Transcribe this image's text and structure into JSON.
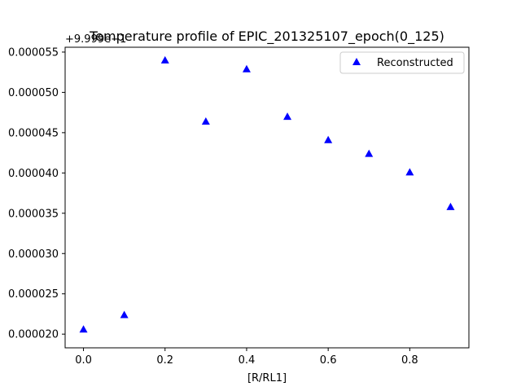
{
  "chart_data": {
    "type": "scatter",
    "title": "Temperature profile of EPIC_201325107_epoch(0_125)",
    "xlabel": "[R/RL1]",
    "ylabel": "",
    "offset_label": "+9.999e−1",
    "xlim": [
      -0.045,
      0.945
    ],
    "ylim": [
      1.83e-05,
      5.56e-05
    ],
    "x_ticks": [
      0.0,
      0.2,
      0.4,
      0.6,
      0.8
    ],
    "x_tick_labels": [
      "0.0",
      "0.2",
      "0.4",
      "0.6",
      "0.8"
    ],
    "y_ticks": [
      2e-05,
      2.5e-05,
      3e-05,
      3.5e-05,
      4e-05,
      4.5e-05,
      5e-05,
      5.5e-05
    ],
    "y_tick_labels": [
      "0.000020",
      "0.000025",
      "0.000030",
      "0.000035",
      "0.000040",
      "0.000045",
      "0.000050",
      "0.000055"
    ],
    "legend_position": "top-right",
    "series": [
      {
        "name": "Reconstructed",
        "marker": "triangle",
        "color": "#0000ff",
        "x": [
          0.0,
          0.1,
          0.2,
          0.3,
          0.4,
          0.5,
          0.6,
          0.7,
          0.8,
          0.9
        ],
        "y": [
          2.06e-05,
          2.24e-05,
          5.4e-05,
          4.64e-05,
          5.29e-05,
          4.7e-05,
          4.41e-05,
          4.24e-05,
          4.01e-05,
          3.58e-05
        ]
      }
    ]
  }
}
